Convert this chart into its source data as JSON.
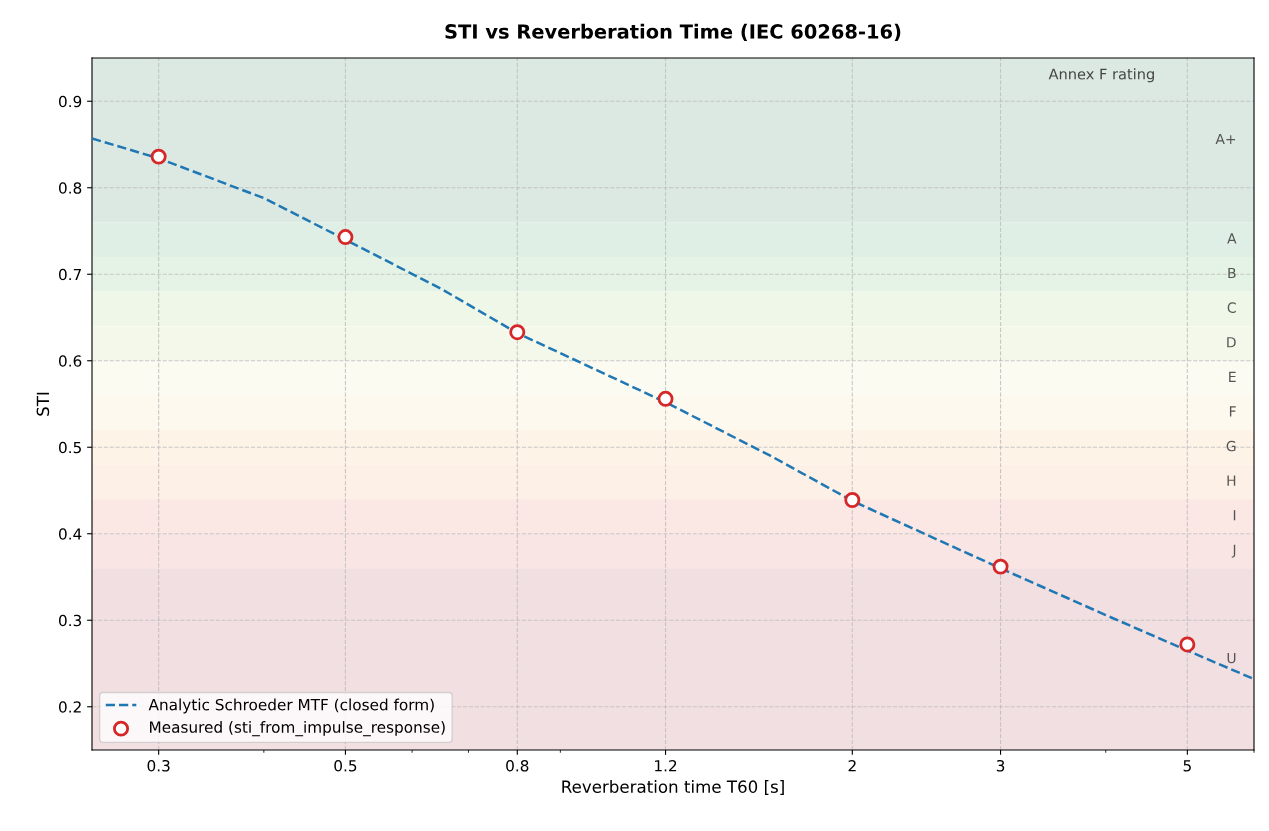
{
  "chart_data": {
    "type": "line",
    "title": "STI vs Reverberation Time (IEC 60268-16)",
    "xlabel": "Reverberation time T60 [s]",
    "ylabel": "STI",
    "log": "x",
    "xlim": [
      0.25,
      6
    ],
    "xticks": [
      0.3,
      0.5,
      0.8,
      1.2,
      2,
      3,
      5
    ],
    "ylim": [
      0.15,
      0.95
    ],
    "yticks": [
      0.2,
      0.3,
      0.4,
      0.5,
      0.6,
      0.7,
      0.8,
      0.9
    ],
    "grid": true,
    "legend": "bottom left",
    "series": [
      {
        "name": "Analytic Schroeder MTF (closed form)",
        "line_style": "dashed",
        "marker": "none",
        "color": "#1f77b4",
        "x": [
          0.25,
          0.3,
          0.4,
          0.5,
          0.65,
          0.8,
          1.0,
          1.2,
          1.6,
          2,
          2.5,
          3,
          4,
          5,
          6
        ],
        "values": [
          0.857,
          0.834,
          0.788,
          0.74,
          0.683,
          0.632,
          0.588,
          0.552,
          0.49,
          0.438,
          0.395,
          0.36,
          0.306,
          0.265,
          0.232
        ]
      },
      {
        "name": "Measured (sti_from_impulse_response)",
        "type": "scatter",
        "marker": "circle",
        "color": "#d62728",
        "x": [
          0.3,
          0.5,
          0.8,
          1.2,
          2,
          3,
          5
        ],
        "values": [
          0.836,
          0.743,
          0.633,
          0.556,
          0.439,
          0.362,
          0.272
        ]
      }
    ],
    "bands": [
      {
        "axis": "y",
        "from": 0.76,
        "to": 0.95,
        "label": "A+",
        "color": "#dce9e2"
      },
      {
        "axis": "y",
        "from": 0.72,
        "to": 0.76,
        "label": "A",
        "color": "#dfefe6"
      },
      {
        "axis": "y",
        "from": 0.68,
        "to": 0.72,
        "label": "B",
        "color": "#e5f3e6"
      },
      {
        "axis": "y",
        "from": 0.64,
        "to": 0.68,
        "label": "C",
        "color": "#eef7e8"
      },
      {
        "axis": "y",
        "from": 0.6,
        "to": 0.64,
        "label": "D",
        "color": "#f4f8eb"
      },
      {
        "axis": "y",
        "from": 0.56,
        "to": 0.6,
        "label": "E",
        "color": "#fbfbf1"
      },
      {
        "axis": "y",
        "from": 0.52,
        "to": 0.56,
        "label": "F",
        "color": "#fdf9ef"
      },
      {
        "axis": "y",
        "from": 0.48,
        "to": 0.52,
        "label": "G",
        "color": "#fdf3e7"
      },
      {
        "axis": "y",
        "from": 0.44,
        "to": 0.48,
        "label": "H",
        "color": "#fdf0e6"
      },
      {
        "axis": "y",
        "from": 0.4,
        "to": 0.44,
        "label": "I",
        "color": "#fbe7e3"
      },
      {
        "axis": "y",
        "from": 0.36,
        "to": 0.4,
        "label": "J",
        "color": "#f9e6e4"
      },
      {
        "axis": "y",
        "from": 0.15,
        "to": 0.36,
        "label": "U",
        "color": "#f2dfe1"
      }
    ],
    "annotations": [
      "Annex F rating"
    ]
  }
}
